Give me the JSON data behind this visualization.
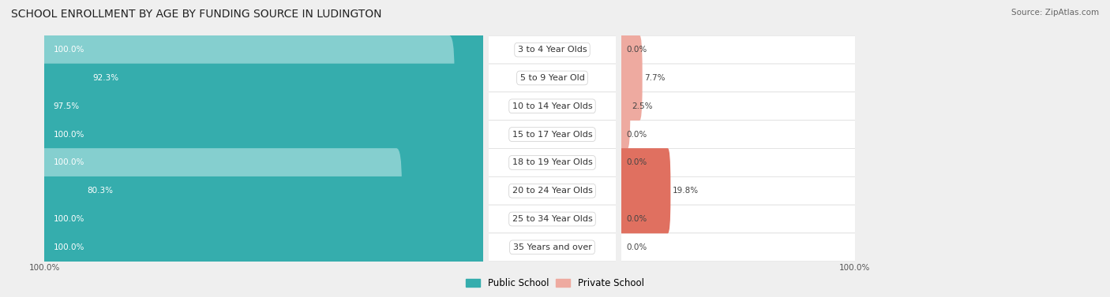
{
  "title": "SCHOOL ENROLLMENT BY AGE BY FUNDING SOURCE IN LUDINGTON",
  "source": "Source: ZipAtlas.com",
  "categories": [
    "3 to 4 Year Olds",
    "5 to 9 Year Old",
    "10 to 14 Year Olds",
    "15 to 17 Year Olds",
    "18 to 19 Year Olds",
    "20 to 24 Year Olds",
    "25 to 34 Year Olds",
    "35 Years and over"
  ],
  "public_values": [
    100.0,
    92.3,
    97.5,
    100.0,
    100.0,
    80.3,
    100.0,
    100.0
  ],
  "private_values": [
    0.0,
    7.7,
    2.5,
    0.0,
    0.0,
    19.8,
    0.0,
    0.0
  ],
  "public_color_dark": "#35ADAD",
  "public_color_light": "#85CFCF",
  "private_color_dark": "#E07060",
  "private_color_light": "#EEAAA0",
  "bg_color": "#EFEFEF",
  "row_color": "#FFFFFF",
  "title_fontsize": 10,
  "label_fontsize": 8,
  "value_fontsize": 7.5,
  "tick_fontsize": 7.5,
  "legend_fontsize": 8.5,
  "bar_height": 0.62,
  "figsize": [
    14.06,
    3.77
  ]
}
